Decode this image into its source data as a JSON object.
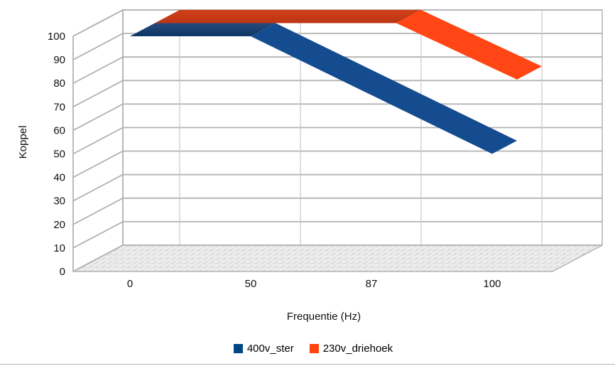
{
  "chart_data": {
    "type": "line",
    "variant": "3d-ribbon-deep",
    "title": "",
    "xlabel": "Frequentie (Hz)",
    "ylabel": "Koppel",
    "categories": [
      "0",
      "50",
      "87",
      "100"
    ],
    "series": [
      {
        "name": "400v_ster",
        "values": [
          100,
          100,
          75,
          50
        ],
        "color": "#004586",
        "top_color": "#26497b",
        "top_color2": "#0d3663",
        "side_color": "#154c90"
      },
      {
        "name": "230v_driehoek",
        "values": [
          100,
          100,
          100,
          76
        ],
        "color": "#ff420e",
        "top_color": "#d04016",
        "top_color2": "#bc3513",
        "side_color": "#ff4614"
      }
    ],
    "ylim": [
      0,
      100
    ],
    "yticks": [
      0,
      10,
      20,
      30,
      40,
      50,
      60,
      70,
      80,
      90,
      100
    ],
    "grid": true,
    "grid_color": "#b2b2b2",
    "minor_grid_color": "#c9c9c9",
    "wall_color": "#ffffff",
    "floor_base_color": "#ececec",
    "floor_hatch_color": "#c7c7c7",
    "text_color": "#111111",
    "legend_position": "bottom"
  }
}
